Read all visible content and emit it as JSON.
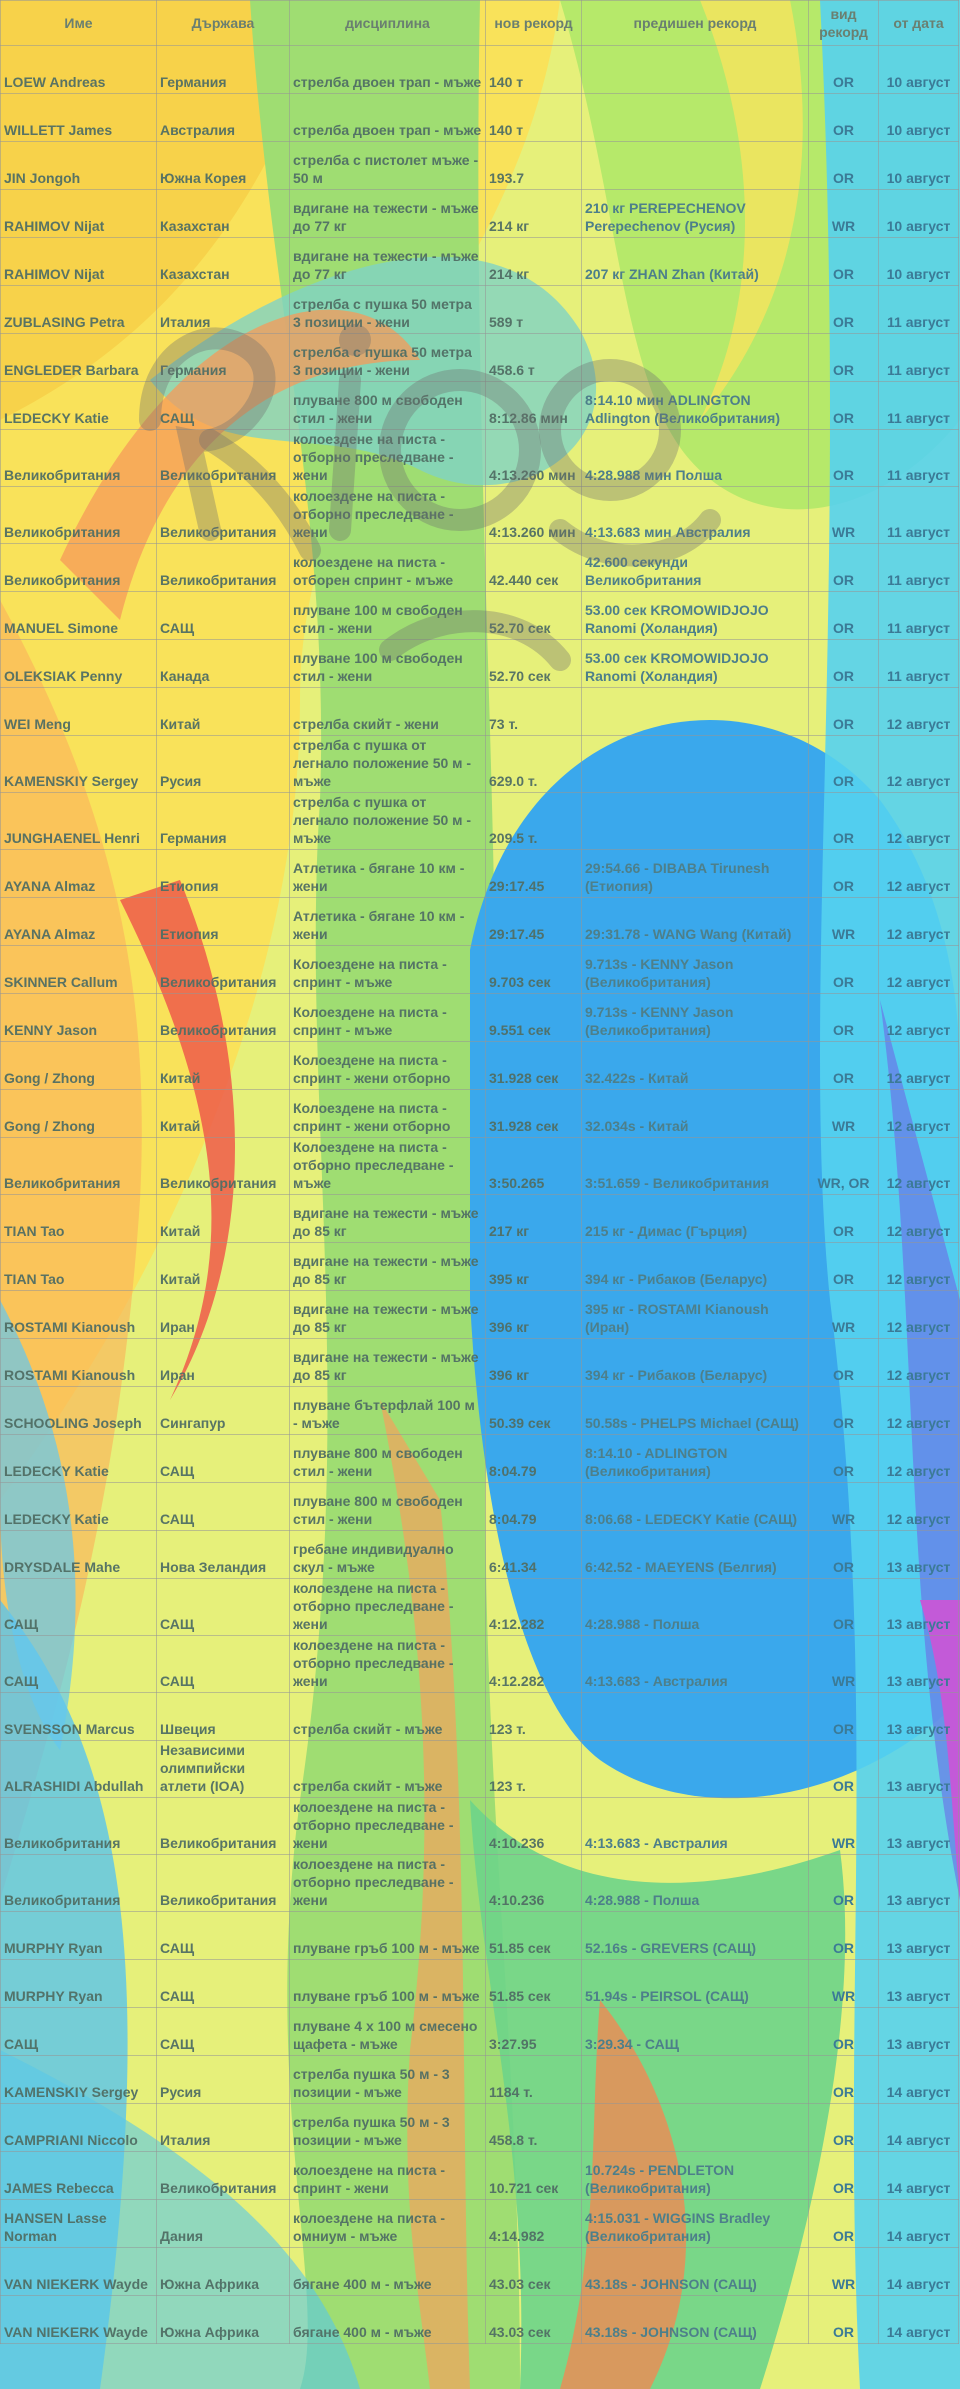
{
  "columns": [
    "Име",
    "Държава",
    "дисциплина",
    "нов рекорд",
    "предишен рекорд",
    "вид рекорд",
    "от дата"
  ],
  "rows": [
    [
      "LOEW Andreas",
      "Германия",
      "стрелба двоен трап - мъже",
      "140 т",
      "",
      "OR",
      "10 август"
    ],
    [
      "WILLETT James",
      "Австралия",
      "стрелба двоен трап - мъже",
      "140 т",
      "",
      "OR",
      "10 август"
    ],
    [
      "JIN Jongoh",
      "Южна Корея",
      "стрелба с пистолет мъже - 50 м",
      "193.7",
      "",
      "OR",
      "10 август"
    ],
    [
      "RAHIMOV Nijat",
      "Казахстан",
      "вдигане на тежести - мъже до 77 кг",
      "214 кг",
      "210 кг PEREPECHENOV Perepechenov (Русия)",
      "WR",
      "10 август"
    ],
    [
      "RAHIMOV Nijat",
      "Казахстан",
      "вдигане на тежести - мъже до 77 кг",
      "214 кг",
      "207 кг ZHAN Zhan (Китай)",
      "OR",
      "10 август"
    ],
    [
      "ZUBLASING Petra",
      "Италия",
      "стрелба с пушка 50 метра 3 позиции - жени",
      "589 т",
      "",
      "OR",
      "11 август"
    ],
    [
      "ENGLEDER Barbara",
      "Германия",
      "стрелба с пушка 50 метра 3 позиции - жени",
      "458.6 т",
      "",
      "OR",
      "11 август"
    ],
    [
      "LEDECKY Katie",
      "САЩ",
      "плуване 800 м свободен стил - жени",
      "8:12.86 мин",
      "8:14.10 мин ADLINGTON Adlington (Великобритания)",
      "OR",
      "11 август"
    ],
    [
      "Великобритания",
      "Великобритания",
      "колоездене на писта - отборно преследване - жени",
      "4:13.260 мин",
      "4:28.988 мин Полша",
      "OR",
      "11 август"
    ],
    [
      "Великобритания",
      "Великобритания",
      "колоездене на писта - отборно преследване - жени",
      "4:13.260 мин",
      "4:13.683 мин Австралия",
      "WR",
      "11 август"
    ],
    [
      "Великобритания",
      "Великобритания",
      "колоездене на писта - отборен спринт - мъже",
      "42.440 сек",
      "42.600 секунди Великобритания",
      "OR",
      "11 август"
    ],
    [
      "MANUEL Simone",
      "САЩ",
      "плуване 100 м свободен стил - жени",
      "52.70 сек",
      "53.00 сек KROMOWIDJOJO Ranomi (Холандия)",
      "OR",
      "11 август"
    ],
    [
      "OLEKSIAK Penny",
      "Канада",
      "плуване 100 м свободен стил - жени",
      "52.70 сек",
      "53.00 сек KROMOWIDJOJO Ranomi (Холандия)",
      "OR",
      "11 август"
    ],
    [
      "WEI Meng",
      "Китай",
      "стрелба скийт - жени",
      "73 т.",
      "",
      "OR",
      "12 август"
    ],
    [
      "KAMENSKIY Sergey",
      "Русия",
      "стрелба с пушка от легнало положение 50 м - мъже",
      "629.0 т.",
      "",
      "OR",
      "12 август"
    ],
    [
      "JUNGHAENEL Henri",
      "Германия",
      "стрелба с пушка от легнало положение 50 м - мъже",
      "209.5 т.",
      "",
      "OR",
      "12 август"
    ],
    [
      "AYANA Almaz",
      "Етиопия",
      "Атлетика - бягане 10 км - жени",
      "29:17.45",
      "29:54.66 - DIBABA Tirunesh (Етиопия)",
      "OR",
      "12 август"
    ],
    [
      "AYANA Almaz",
      "Етиопия",
      "Атлетика - бягане 10 км - жени",
      "29:17.45",
      "29:31.78 - WANG Wang (Китай)",
      "WR",
      "12 август"
    ],
    [
      "SKINNER Callum",
      "Великобритания",
      "Колоездене на писта - спринт - мъже",
      "9.703 сек",
      "9.713s - KENNY Jason (Великобритания)",
      "OR",
      "12 август"
    ],
    [
      "KENNY Jason",
      "Великобритания",
      "Колоездене на писта - спринт - мъже",
      "9.551 сек",
      "9.713s - KENNY Jason (Великобритания)",
      "OR",
      "12 август"
    ],
    [
      "Gong / Zhong",
      "Китай",
      "Колоездене на писта - спринт - жени отборно",
      "31.928 сек",
      "32.422s - Китай",
      "OR",
      "12 август"
    ],
    [
      "Gong / Zhong",
      "Китай",
      "Колоездене на писта - спринт - жени отборно",
      "31.928 сек",
      "32.034s - Китай",
      "WR",
      "12 август"
    ],
    [
      "Великобритания",
      "Великобритания",
      "Колоездене на писта - отборно преследване - мъже",
      "3:50.265",
      "3:51.659 - Великобритания",
      "WR, OR",
      "12 август"
    ],
    [
      "TIAN Tao",
      "Китай",
      "вдигане на тежести - мъже до 85 кг",
      "217 кг",
      "215 кг - Димас (Гърция)",
      "OR",
      "12 август"
    ],
    [
      "TIAN Tao",
      "Китай",
      "вдигане на тежести - мъже до 85 кг",
      "395 кг",
      "394 кг - Рибаков (Беларус)",
      "OR",
      "12 август"
    ],
    [
      "ROSTAMI Kianoush",
      "Иран",
      "вдигане на тежести - мъже до 85 кг",
      "396 кг",
      "395 кг - ROSTAMI Kianoush (Иран)",
      "WR",
      "12 август"
    ],
    [
      "ROSTAMI Kianoush",
      "Иран",
      "вдигане на тежести - мъже до 85 кг",
      "396 кг",
      "394 кг - Рибаков (Беларус)",
      "OR",
      "12 август"
    ],
    [
      "SCHOOLING Joseph",
      "Сингапур",
      "плуване бътерфлай 100 м - мъже",
      "50.39 сек",
      "50.58s - PHELPS Michael (САЩ)",
      "OR",
      "12 август"
    ],
    [
      "LEDECKY Katie",
      "САЩ",
      "плуване 800 м свободен стил - жени",
      "8:04.79",
      "8:14.10 - ADLINGTON (Великобритания)",
      "OR",
      "12 август"
    ],
    [
      "LEDECKY Katie",
      "САЩ",
      "плуване 800 м свободен стил - жени",
      "8:04.79",
      "8:06.68 - LEDECKY Katie (САЩ)",
      "WR",
      "12 август"
    ],
    [
      "DRYSDALE Mahe",
      "Нова Зеландия",
      "гребане индивидуално скул - мъже",
      "6:41.34",
      "6:42.52 - MAEYENS (Белгия)",
      "OR",
      "13 август"
    ],
    [
      "САЩ",
      "САЩ",
      "колоездене на писта - отборно преследване - жени",
      "4:12.282",
      "4:28.988 - Полша",
      "OR",
      "13 август"
    ],
    [
      "САЩ",
      "САЩ",
      "колоездене на писта - отборно преследване - жени",
      "4:12.282",
      "4:13.683 - Австралия",
      "WR",
      "13 август"
    ],
    [
      "SVENSSON Marcus",
      "Швеция",
      "стрелба скийт - мъже",
      "123 т.",
      "",
      "OR",
      "13 август"
    ],
    [
      "ALRASHIDI Abdullah",
      "Независими олимпийски атлети (IOA)",
      "стрелба скийт - мъже",
      "123 т.",
      "",
      "OR",
      "13 август"
    ],
    [
      "Великобритания",
      "Великобритания",
      "колоездене на писта - отборно преследване - жени",
      "4:10.236",
      "4:13.683 - Австралия",
      "WR",
      "13 август"
    ],
    [
      "Великобритания",
      "Великобритания",
      "колоездене на писта - отборно преследване - жени",
      "4:10.236",
      "4:28.988 - Полша",
      "OR",
      "13 август"
    ],
    [
      "MURPHY Ryan",
      "САЩ",
      "плуване гръб 100 м - мъже",
      "51.85 сек",
      "52.16s - GREVERS (САЩ)",
      "OR",
      "13 август"
    ],
    [
      "MURPHY Ryan",
      "САЩ",
      "плуване гръб 100 м - мъже",
      "51.85 сек",
      "51.94s - PEIRSOL (САЩ)",
      "WR",
      "13 август"
    ],
    [
      "САЩ",
      "САЩ",
      "плуване 4 х 100 м смесено щафета - мъже",
      "3:27.95",
      "3:29.34 - САЩ",
      "OR",
      "13 август"
    ],
    [
      "KAMENSKIY Sergey",
      "Русия",
      "стрелба пушка 50 м - 3 позиции - мъже",
      "1184 т.",
      "",
      "OR",
      "14 август"
    ],
    [
      "CAMPRIANI Niccolo",
      "Италия",
      "стрелба пушка 50 м - 3 позиции - мъже",
      "458.8 т.",
      "",
      "OR",
      "14 август"
    ],
    [
      "JAMES Rebecca",
      "Великобритания",
      "колоездене на писта - спринт - жени",
      "10.721 сек",
      "10.724s - PENDLETON (Великобритания)",
      "OR",
      "14 август"
    ],
    [
      "HANSEN Lasse Norman",
      "Дания",
      "колоездене на писта - омниум - мъже",
      "4:14.982",
      "4:15.031 - WIGGINS Bradley (Великобритания)",
      "OR",
      "14 август"
    ],
    [
      "VAN NIEKERK Wayde",
      "Южна Африка",
      "бягане 400 м - мъже",
      "43.03 сек",
      "43.18s - JOHNSON (САЩ)",
      "WR",
      "14 август"
    ],
    [
      "VAN NIEKERK Wayde",
      "Южна Африка",
      "бягане 400 м - мъже",
      "43.03 сек",
      "43.18s - JOHNSON (САЩ)",
      "OR",
      "14 август"
    ]
  ]
}
